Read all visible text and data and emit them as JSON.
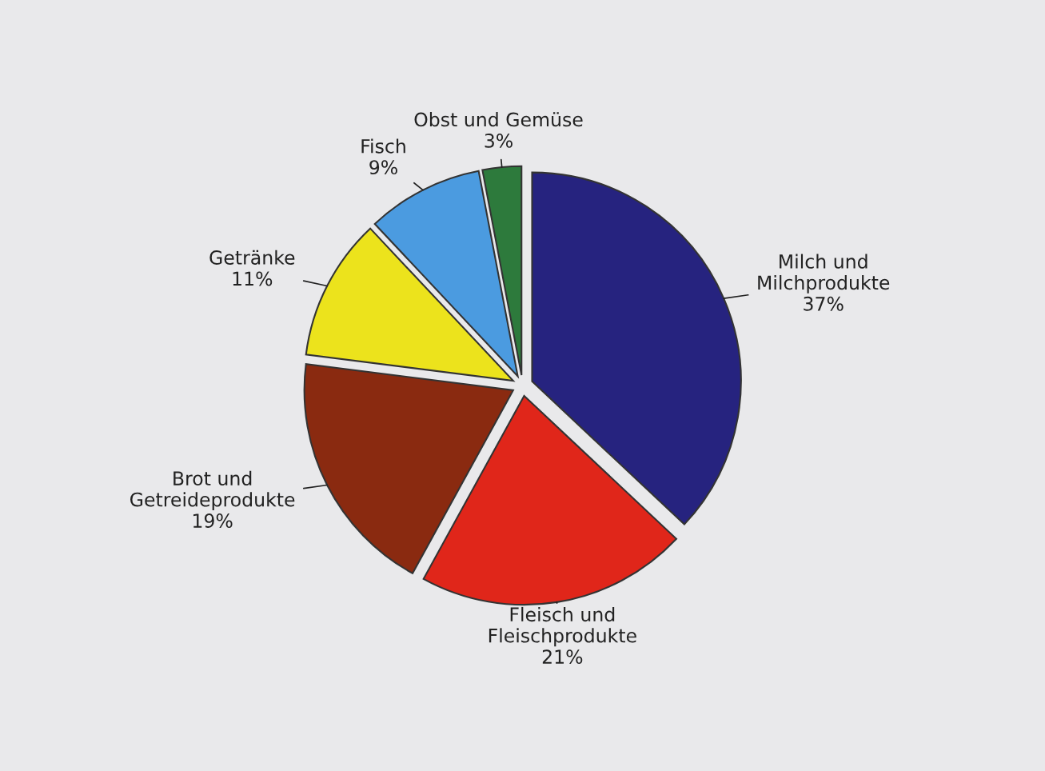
{
  "chart_data": {
    "type": "pie",
    "categories": [
      "Milch und\nMilchprodukte",
      "Fleisch und\nFleischprodukte",
      "Brot und\nGetreideprodukte",
      "Getränke",
      "Fisch",
      "Obst und Gemüse"
    ],
    "values": [
      37,
      21,
      19,
      11,
      9,
      3
    ],
    "value_labels": [
      "37%",
      "21%",
      "19%",
      "11%",
      "9%",
      "3%"
    ],
    "colors": [
      "#26237f",
      "#e0261a",
      "#8a2a10",
      "#ece31c",
      "#4b9be0",
      "#2d7a3c"
    ],
    "legend": false
  }
}
